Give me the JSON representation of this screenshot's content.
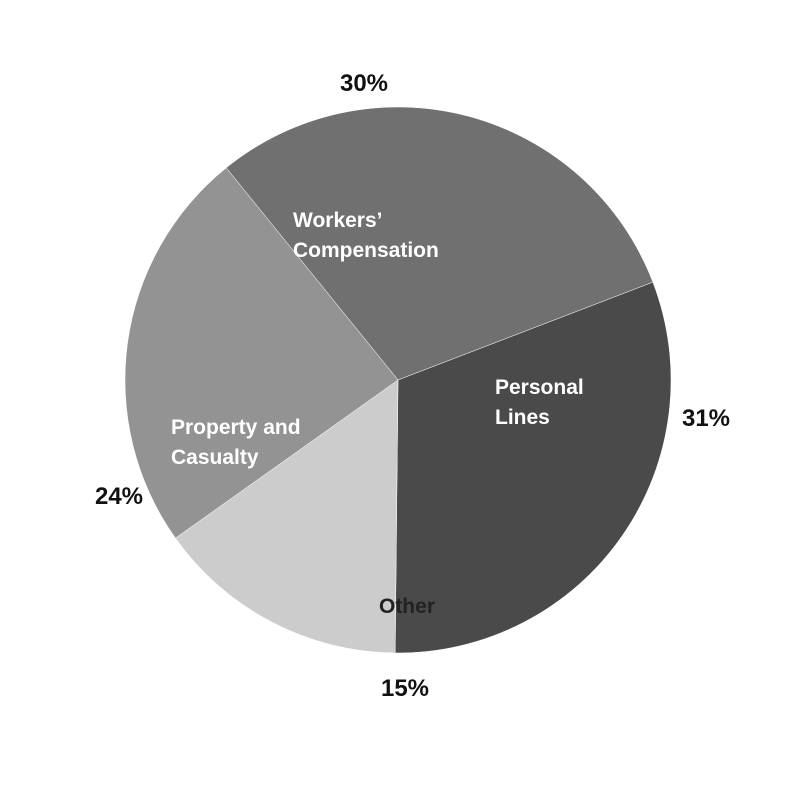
{
  "chart_data": {
    "type": "pie",
    "slices": [
      {
        "label": [
          "Workers’",
          "Compensation"
        ],
        "value": 30,
        "value_label": "30%",
        "color": "#707070"
      },
      {
        "label": [
          "Personal",
          "Lines"
        ],
        "value": 31,
        "value_label": "31%",
        "color": "#4a4a4a"
      },
      {
        "label": [
          "Other"
        ],
        "value": 15,
        "value_label": "15%",
        "color": "#cccccc"
      },
      {
        "label": [
          "Property and",
          "Casualty"
        ],
        "value": 24,
        "value_label": "24%",
        "color": "#939393"
      }
    ]
  }
}
